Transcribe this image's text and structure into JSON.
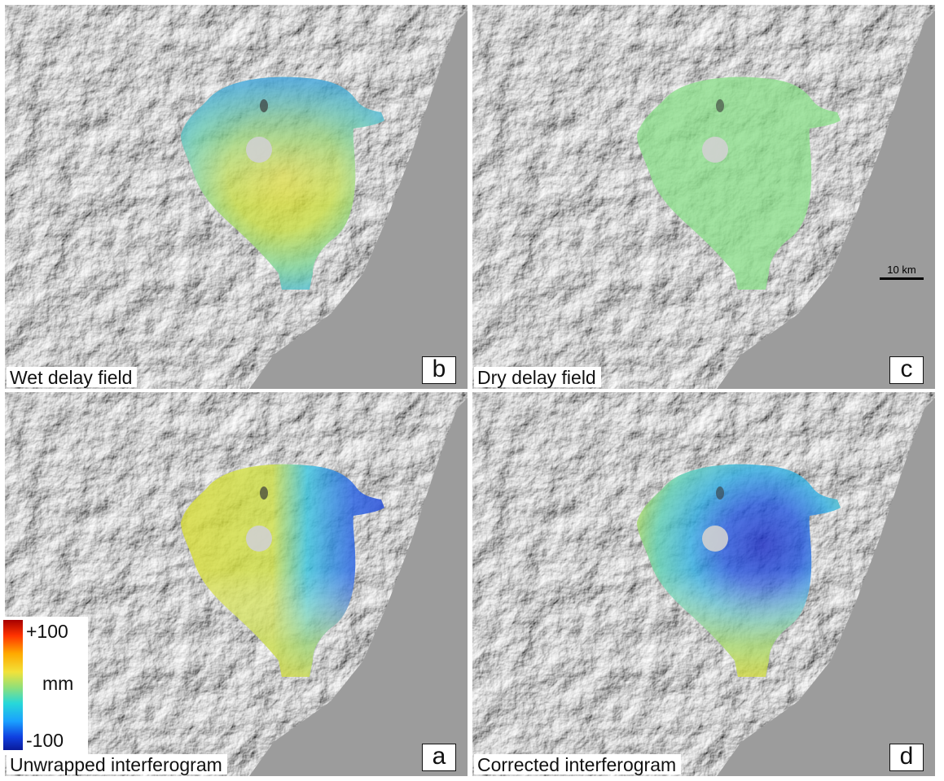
{
  "panels": {
    "b": {
      "caption": "Wet delay field",
      "letter": "b"
    },
    "c": {
      "caption": "Dry delay field",
      "letter": "c"
    },
    "a": {
      "caption": "Unwrapped interferogram",
      "letter": "a"
    },
    "d": {
      "caption": "Corrected interferogram",
      "letter": "d"
    }
  },
  "scalebar": {
    "label": "10 km"
  },
  "colorbar": {
    "top_label": "+100",
    "unit_label": "mm",
    "bottom_label": "-100"
  },
  "colors": {
    "background_relief": "#9a9a9a",
    "cmap_high": "#a50000",
    "cmap_mid": "#8fe07a",
    "cmap_low": "#0a1a9a"
  }
}
